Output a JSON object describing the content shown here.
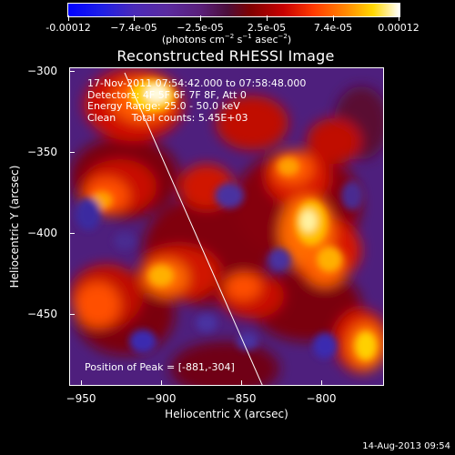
{
  "colorbar": {
    "tick_labels": [
      "-0.00012",
      "−7.4e-05",
      "−2.5e-05",
      "2.5e-05",
      "7.4e-05",
      "0.00012"
    ],
    "unit_prefix": "(photons cm",
    "unit_exp1": "−2",
    "unit_mid1": " s",
    "unit_exp2": "−1",
    "unit_mid2": " asec",
    "unit_exp3": "−2",
    "unit_suffix": ")"
  },
  "title": "Reconstructed RHESSI Image",
  "info": {
    "line1": "17-Nov-2011 07:54:42.000 to 07:58:48.000",
    "line2": "Detectors: 4F 5F 6F 7F 8F, Att 0",
    "line3": "Energy Range: 25.0 - 50.0 keV",
    "line4": "Clean     Total counts: 5.45E+03"
  },
  "peak_text": "Position of Peak = [-881,-304]",
  "x_axis": {
    "title": "Heliocentric X (arcsec)",
    "ticks": [
      "−950",
      "−900",
      "−850",
      "−800"
    ]
  },
  "y_axis": {
    "title": "Heliocentric Y (arcsec)",
    "ticks": [
      "−300",
      "−350",
      "−400",
      "−450"
    ]
  },
  "datestamp": "14-Aug-2013 09:54",
  "colors": {
    "background": "#000000",
    "foreground": "#ffffff"
  }
}
